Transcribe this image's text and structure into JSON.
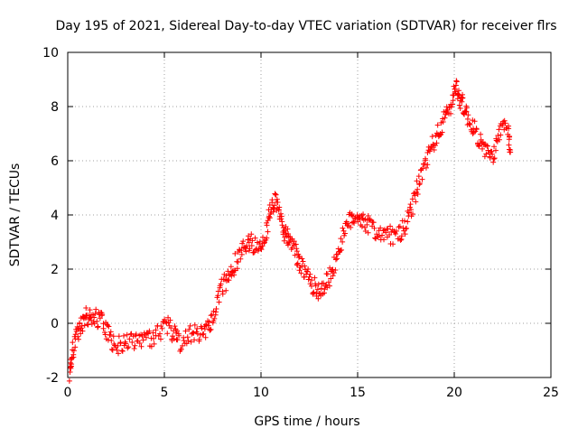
{
  "colors": {
    "series": "#ff0000",
    "grid": "#a0a0a0",
    "axis": "#000000",
    "background": "#ffffff"
  },
  "chart_data": {
    "type": "scatter",
    "title": "Day 195 of 2021, Sidereal Day-to-day VTEC variation (SDTVAR) for receiver flrs",
    "xlabel": "GPS time / hours",
    "ylabel": "SDTVAR / TECUs",
    "xlim": [
      0,
      25
    ],
    "ylim": [
      -2,
      10
    ],
    "xticks": [
      0,
      5,
      10,
      15,
      20,
      25
    ],
    "yticks": [
      -2,
      0,
      2,
      4,
      6,
      8,
      10
    ],
    "grid": true,
    "marker": "+",
    "series": [
      {
        "name": "SDTVAR",
        "trace": [
          [
            0.1,
            -1.9
          ],
          [
            0.2,
            -1.2
          ],
          [
            0.4,
            -0.6
          ],
          [
            0.6,
            -0.2
          ],
          [
            0.8,
            0.1
          ],
          [
            1.0,
            0.3
          ],
          [
            1.2,
            0.3
          ],
          [
            1.5,
            0.2
          ],
          [
            1.8,
            0.1
          ],
          [
            2.1,
            -0.4
          ],
          [
            2.4,
            -0.8
          ],
          [
            2.8,
            -0.8
          ],
          [
            3.2,
            -0.7
          ],
          [
            3.6,
            -0.6
          ],
          [
            4.0,
            -0.6
          ],
          [
            4.4,
            -0.5
          ],
          [
            4.8,
            -0.3
          ],
          [
            5.2,
            -0.1
          ],
          [
            5.5,
            -0.4
          ],
          [
            5.8,
            -0.7
          ],
          [
            6.2,
            -0.4
          ],
          [
            6.6,
            -0.4
          ],
          [
            7.0,
            -0.3
          ],
          [
            7.3,
            -0.1
          ],
          [
            7.6,
            0.5
          ],
          [
            7.9,
            1.2
          ],
          [
            8.2,
            1.6
          ],
          [
            8.5,
            2.0
          ],
          [
            8.8,
            2.4
          ],
          [
            9.1,
            2.8
          ],
          [
            9.4,
            3.0
          ],
          [
            9.7,
            2.9
          ],
          [
            10.0,
            3.0
          ],
          [
            10.3,
            3.5
          ],
          [
            10.5,
            4.2
          ],
          [
            10.7,
            4.5
          ],
          [
            10.9,
            4.3
          ],
          [
            11.1,
            3.5
          ],
          [
            11.3,
            3.2
          ],
          [
            11.5,
            3.0
          ],
          [
            11.8,
            2.6
          ],
          [
            12.0,
            2.2
          ],
          [
            12.3,
            1.8
          ],
          [
            12.6,
            1.5
          ],
          [
            12.9,
            1.2
          ],
          [
            13.2,
            1.3
          ],
          [
            13.5,
            1.6
          ],
          [
            13.8,
            2.2
          ],
          [
            14.1,
            2.9
          ],
          [
            14.4,
            3.5
          ],
          [
            14.7,
            3.9
          ],
          [
            15.0,
            4.0
          ],
          [
            15.3,
            3.8
          ],
          [
            15.6,
            3.6
          ],
          [
            16.0,
            3.4
          ],
          [
            16.4,
            3.3
          ],
          [
            16.8,
            3.2
          ],
          [
            17.2,
            3.3
          ],
          [
            17.5,
            3.6
          ],
          [
            17.8,
            4.2
          ],
          [
            18.1,
            5.0
          ],
          [
            18.4,
            5.7
          ],
          [
            18.7,
            6.3
          ],
          [
            19.0,
            6.8
          ],
          [
            19.3,
            7.2
          ],
          [
            19.6,
            7.7
          ],
          [
            19.9,
            8.2
          ],
          [
            20.1,
            8.8
          ],
          [
            20.3,
            8.3
          ],
          [
            20.5,
            8.0
          ],
          [
            20.7,
            7.6
          ],
          [
            21.0,
            7.2
          ],
          [
            21.3,
            6.8
          ],
          [
            21.6,
            6.4
          ],
          [
            21.9,
            6.1
          ],
          [
            22.2,
            6.6
          ],
          [
            22.5,
            7.3
          ],
          [
            22.8,
            7.0
          ],
          [
            22.9,
            6.4
          ]
        ]
      }
    ]
  }
}
